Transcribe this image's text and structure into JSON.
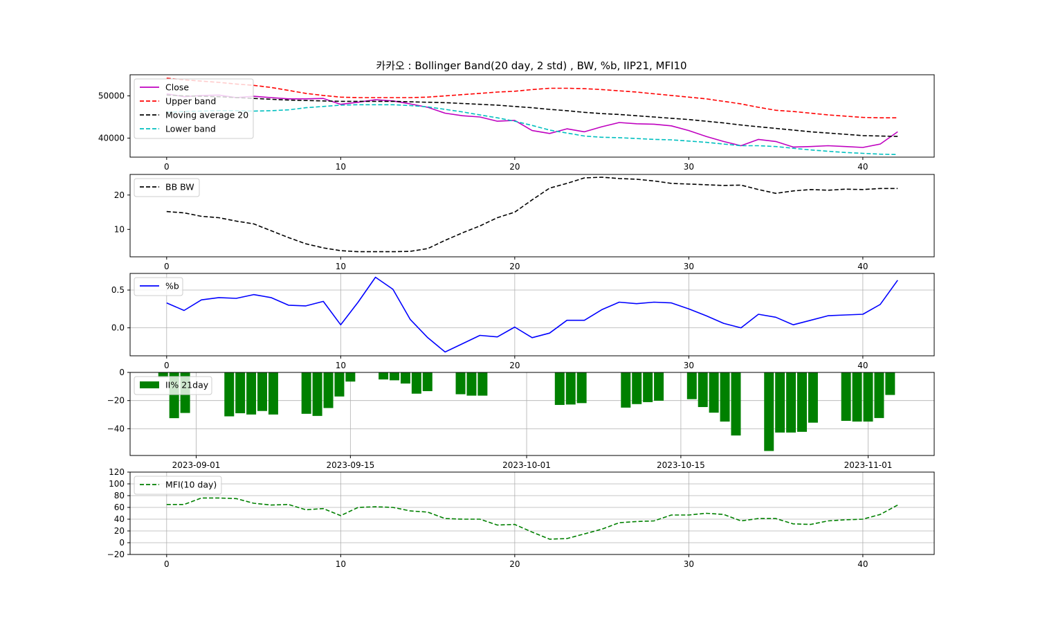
{
  "title": "카카오 : Bollinger Band(20 day, 2 std) , BW, %b, IIP21, MFI10",
  "chart_data": [
    {
      "type": "line",
      "panel": "price",
      "x": [
        0,
        1,
        2,
        3,
        4,
        5,
        6,
        7,
        8,
        9,
        10,
        11,
        12,
        13,
        14,
        15,
        16,
        17,
        18,
        19,
        20,
        21,
        22,
        23,
        24,
        25,
        26,
        27,
        28,
        29,
        30,
        31,
        32,
        33,
        34,
        35,
        36,
        37,
        38,
        39,
        40,
        41,
        42
      ],
      "series": [
        {
          "name": "Close",
          "color": "#bf00bf",
          "dash": "solid",
          "values": [
            50500,
            49800,
            50100,
            50200,
            49600,
            49900,
            49600,
            49300,
            49300,
            49400,
            48000,
            48500,
            49100,
            48800,
            48100,
            47300,
            45900,
            45300,
            45000,
            44000,
            44200,
            41800,
            41100,
            42200,
            41500,
            42700,
            43700,
            43400,
            43300,
            42900,
            41800,
            40400,
            39200,
            38200,
            39700,
            39200,
            37900,
            38000,
            38200,
            38000,
            37800,
            38600,
            41500
          ]
        },
        {
          "name": "Upper band",
          "color": "#ff0000",
          "dash": "dashed",
          "values": [
            54200,
            53800,
            53500,
            53200,
            52800,
            52500,
            52000,
            51300,
            50600,
            50100,
            49700,
            49600,
            49600,
            49600,
            49600,
            49700,
            50000,
            50300,
            50600,
            50900,
            51100,
            51500,
            51800,
            51800,
            51700,
            51500,
            51200,
            50900,
            50500,
            50100,
            49700,
            49300,
            48700,
            48100,
            47300,
            46600,
            46300,
            45900,
            45500,
            45200,
            44900,
            44800,
            44800
          ]
        },
        {
          "name": "Moving average 20",
          "color": "#000000",
          "dash": "dashed",
          "values": [
            50200,
            50000,
            49900,
            49800,
            49600,
            49400,
            49200,
            49000,
            48900,
            48800,
            48700,
            48700,
            48700,
            48700,
            48600,
            48500,
            48400,
            48200,
            48000,
            47800,
            47500,
            47200,
            46800,
            46500,
            46100,
            45800,
            45600,
            45300,
            45000,
            44700,
            44400,
            44000,
            43600,
            43100,
            42700,
            42300,
            41900,
            41500,
            41200,
            40900,
            40600,
            40500,
            40400
          ]
        },
        {
          "name": "Lower band",
          "color": "#00bfbf",
          "dash": "dashed",
          "values": [
            46100,
            46300,
            46400,
            46500,
            46500,
            46400,
            46500,
            46700,
            47200,
            47500,
            47800,
            47900,
            47900,
            47900,
            47700,
            47400,
            46800,
            46200,
            45500,
            44800,
            44000,
            43000,
            41900,
            41200,
            40500,
            40200,
            40100,
            39900,
            39700,
            39600,
            39300,
            39000,
            38600,
            38200,
            38200,
            38000,
            37600,
            37200,
            36900,
            36600,
            36400,
            36200,
            36100
          ]
        }
      ],
      "ylim": [
        35500,
        55000
      ],
      "yticks": [
        40000,
        50000
      ],
      "xlim": [
        -2.1,
        44.1
      ],
      "xticks": [
        0,
        10,
        20,
        30,
        40
      ],
      "legend_location": "upper-left",
      "grid": false
    },
    {
      "type": "line",
      "panel": "bandwidth",
      "x": [
        0,
        1,
        2,
        3,
        4,
        5,
        6,
        7,
        8,
        9,
        10,
        11,
        12,
        13,
        14,
        15,
        16,
        17,
        18,
        19,
        20,
        21,
        22,
        23,
        24,
        25,
        26,
        27,
        28,
        29,
        30,
        31,
        32,
        33,
        34,
        35,
        36,
        37,
        38,
        39,
        40,
        41,
        42
      ],
      "series": [
        {
          "name": "BB BW",
          "color": "#000000",
          "dash": "dashed",
          "values": [
            15.2,
            14.8,
            13.8,
            13.4,
            12.4,
            11.6,
            9.6,
            7.6,
            5.8,
            4.6,
            3.8,
            3.5,
            3.5,
            3.5,
            3.6,
            4.4,
            6.8,
            9.0,
            11.0,
            13.4,
            15.0,
            18.6,
            22.0,
            23.4,
            25.0,
            25.2,
            24.8,
            24.6,
            24.1,
            23.4,
            23.2,
            23.0,
            22.8,
            22.9,
            21.6,
            20.5,
            21.2,
            21.6,
            21.4,
            21.7,
            21.6,
            21.9,
            21.9
          ]
        }
      ],
      "ylim": [
        2,
        26
      ],
      "yticks": [
        10,
        20
      ],
      "xlim": [
        -2.1,
        44.1
      ],
      "xticks": [
        0,
        10,
        20,
        30,
        40
      ],
      "legend_location": "upper-left",
      "grid": false
    },
    {
      "type": "line",
      "panel": "percent_b",
      "x": [
        0,
        1,
        2,
        3,
        4,
        5,
        6,
        7,
        8,
        9,
        10,
        11,
        12,
        13,
        14,
        15,
        16,
        17,
        18,
        19,
        20,
        21,
        22,
        23,
        24,
        25,
        26,
        27,
        28,
        29,
        30,
        31,
        32,
        33,
        34,
        35,
        36,
        37,
        38,
        39,
        40,
        41,
        42
      ],
      "series": [
        {
          "name": "%b",
          "color": "#0000ff",
          "dash": "solid",
          "values": [
            0.33,
            0.23,
            0.37,
            0.4,
            0.39,
            0.44,
            0.4,
            0.3,
            0.29,
            0.35,
            0.04,
            0.34,
            0.67,
            0.51,
            0.11,
            -0.13,
            -0.32,
            -0.21,
            -0.1,
            -0.12,
            0.01,
            -0.13,
            -0.07,
            0.1,
            0.1,
            0.24,
            0.34,
            0.32,
            0.34,
            0.33,
            0.25,
            0.16,
            0.06,
            0.0,
            0.18,
            0.14,
            0.04,
            0.1,
            0.16,
            0.17,
            0.18,
            0.31,
            0.63
          ]
        }
      ],
      "ylim": [
        -0.37,
        0.72
      ],
      "yticks": [
        0.0,
        0.5
      ],
      "ytick_labels": [
        "0.0",
        "0.5"
      ],
      "xlim": [
        -2.1,
        44.1
      ],
      "xticks": [
        0,
        10,
        20,
        30,
        40
      ],
      "legend_location": "upper-left",
      "grid": true
    },
    {
      "type": "bar",
      "panel": "iip21",
      "bars": [
        {
          "date": "2023-08-29",
          "value": -3.5
        },
        {
          "date": "2023-08-30",
          "value": -32.5
        },
        {
          "date": "2023-08-31",
          "value": -28.8
        },
        {
          "date": "2023-09-04",
          "value": -31.2
        },
        {
          "date": "2023-09-05",
          "value": -29.0
        },
        {
          "date": "2023-09-06",
          "value": -29.9
        },
        {
          "date": "2023-09-07",
          "value": -27.4
        },
        {
          "date": "2023-09-08",
          "value": -29.9
        },
        {
          "date": "2023-09-11",
          "value": -29.4
        },
        {
          "date": "2023-09-12",
          "value": -30.9
        },
        {
          "date": "2023-09-13",
          "value": -25.3
        },
        {
          "date": "2023-09-14",
          "value": -17.1
        },
        {
          "date": "2023-09-15",
          "value": -6.5
        },
        {
          "date": "2023-09-18",
          "value": -5.0
        },
        {
          "date": "2023-09-19",
          "value": -5.6
        },
        {
          "date": "2023-09-20",
          "value": -7.9
        },
        {
          "date": "2023-09-21",
          "value": -15.1
        },
        {
          "date": "2023-09-22",
          "value": -13.3
        },
        {
          "date": "2023-09-25",
          "value": -15.5
        },
        {
          "date": "2023-09-26",
          "value": -16.5
        },
        {
          "date": "2023-09-27",
          "value": -16.5
        },
        {
          "date": "2023-10-04",
          "value": -23.1
        },
        {
          "date": "2023-10-05",
          "value": -22.8
        },
        {
          "date": "2023-10-06",
          "value": -21.8
        },
        {
          "date": "2023-10-10",
          "value": -25.0
        },
        {
          "date": "2023-10-11",
          "value": -22.5
        },
        {
          "date": "2023-10-12",
          "value": -21.1
        },
        {
          "date": "2023-10-13",
          "value": -20.1
        },
        {
          "date": "2023-10-16",
          "value": -19.0
        },
        {
          "date": "2023-10-17",
          "value": -24.6
        },
        {
          "date": "2023-10-18",
          "value": -28.6
        },
        {
          "date": "2023-10-19",
          "value": -34.9
        },
        {
          "date": "2023-10-20",
          "value": -44.8
        },
        {
          "date": "2023-10-23",
          "value": -55.8
        },
        {
          "date": "2023-10-24",
          "value": -42.7
        },
        {
          "date": "2023-10-25",
          "value": -42.7
        },
        {
          "date": "2023-10-26",
          "value": -42.2
        },
        {
          "date": "2023-10-27",
          "value": -35.7
        },
        {
          "date": "2023-10-30",
          "value": -34.4
        },
        {
          "date": "2023-10-31",
          "value": -34.9
        },
        {
          "date": "2023-11-01",
          "value": -34.9
        },
        {
          "date": "2023-11-02",
          "value": -32.4
        },
        {
          "date": "2023-11-03",
          "value": -16.0
        }
      ],
      "series_name": "II% 21day",
      "color": "#008000",
      "ylim": [
        -59,
        0
      ],
      "yticks": [
        -40,
        -20,
        0
      ],
      "ytick_labels": [
        "−40",
        "−20",
        "0"
      ],
      "xlim": [
        "2023-08-26",
        "2023-11-07"
      ],
      "xticks": [
        "2023-09-01",
        "2023-09-15",
        "2023-10-01",
        "2023-10-15",
        "2023-11-01"
      ],
      "legend_location": "upper-left",
      "grid": true
    },
    {
      "type": "line",
      "panel": "mfi",
      "x": [
        0,
        1,
        2,
        3,
        4,
        5,
        6,
        7,
        8,
        9,
        10,
        11,
        12,
        13,
        14,
        15,
        16,
        17,
        18,
        19,
        20,
        21,
        22,
        23,
        24,
        25,
        26,
        27,
        28,
        29,
        30,
        31,
        32,
        33,
        34,
        35,
        36,
        37,
        38,
        39,
        40,
        41,
        42
      ],
      "series": [
        {
          "name": "MFI(10 day)",
          "color": "#008000",
          "dash": "dashed",
          "values": [
            65,
            65,
            76,
            76,
            75,
            67,
            64,
            65,
            56,
            58,
            46,
            60,
            61,
            60,
            54,
            52,
            41,
            40,
            40,
            30,
            31,
            18,
            6,
            7,
            15,
            23,
            34,
            36,
            37,
            47,
            47,
            50,
            48,
            37,
            41,
            41,
            32,
            31,
            37,
            39,
            40,
            48,
            64
          ]
        }
      ],
      "ylim": [
        -20,
        120
      ],
      "yticks": [
        -20,
        0,
        20,
        40,
        60,
        80,
        100,
        120
      ],
      "ytick_labels": [
        "−20",
        "0",
        "20",
        "40",
        "60",
        "80",
        "100",
        "120"
      ],
      "xlim": [
        -2.1,
        44.1
      ],
      "xticks": [
        0,
        10,
        20,
        30,
        40
      ],
      "legend_location": "upper-left",
      "grid": true
    }
  ]
}
